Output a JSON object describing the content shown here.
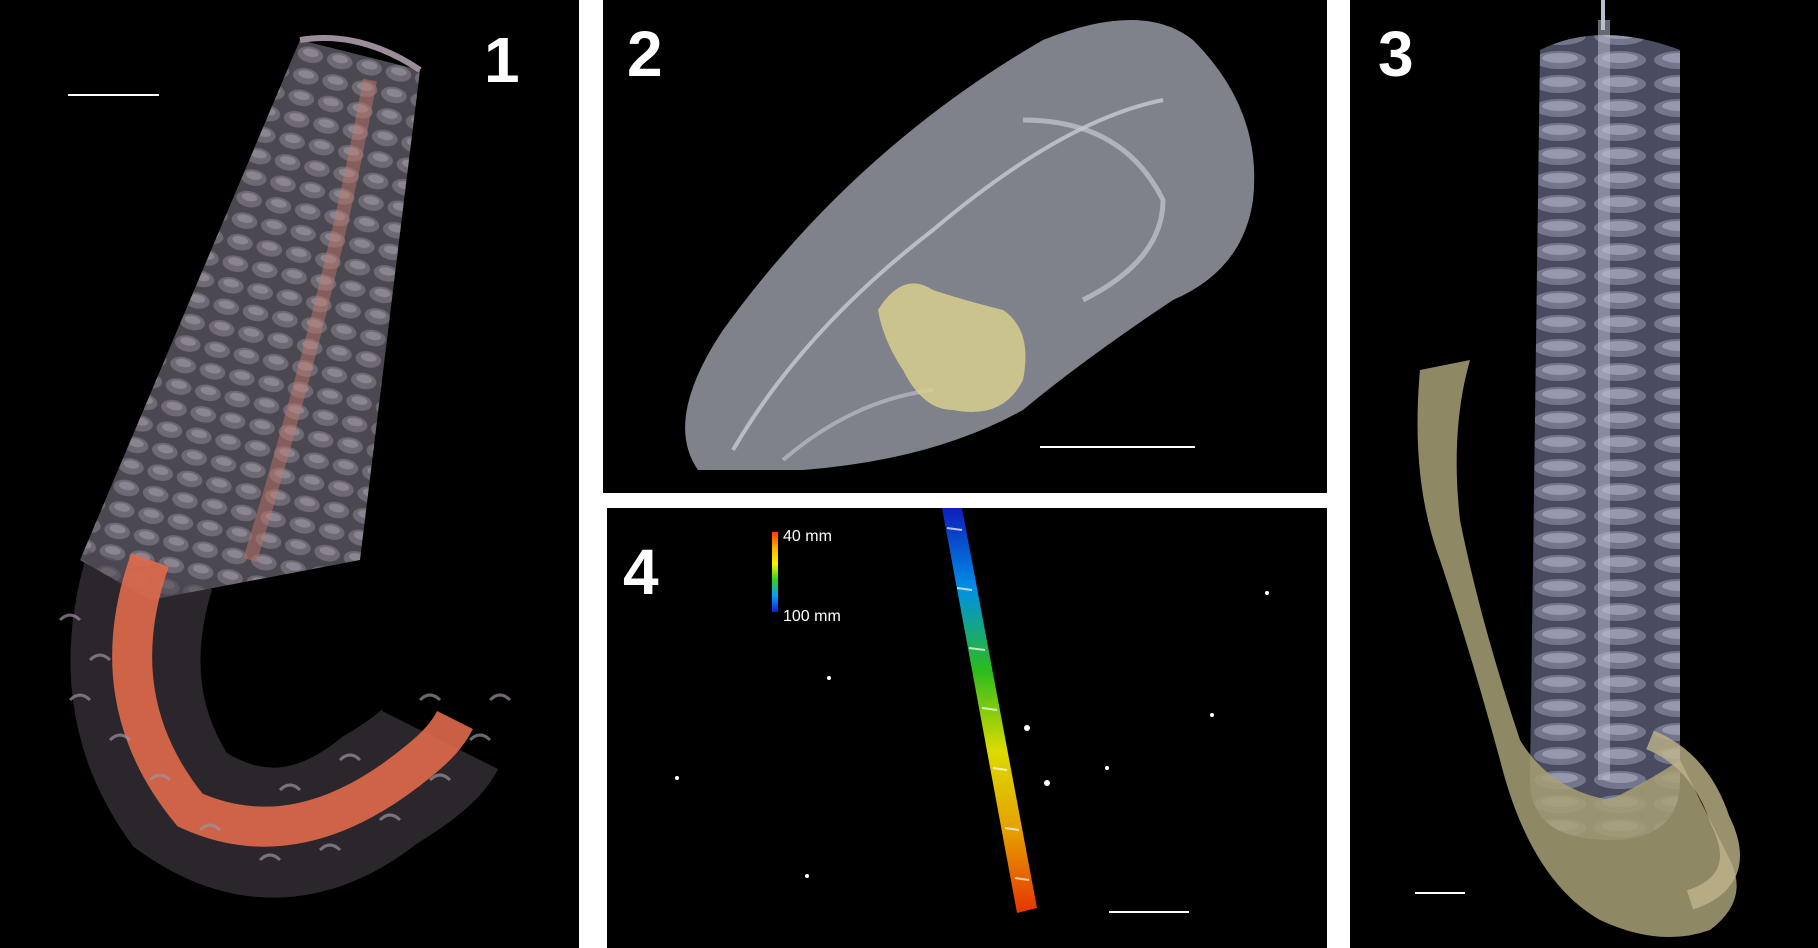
{
  "panels": [
    {
      "label": "1",
      "subject": "segmented-worm-specimen-curled-orange-gut"
    },
    {
      "label": "2",
      "subject": "translucent-head-with-yellow-structure"
    },
    {
      "label": "3",
      "subject": "segmented-worm-specimen-with-olive-tissue"
    },
    {
      "label": "4",
      "subject": "color-depth-coded-segmented-chain"
    }
  ],
  "colorbar": {
    "top_label": "40 mm",
    "bottom_label": "100 mm",
    "colors": [
      "#ff3a00",
      "#ffb000",
      "#f4f400",
      "#30d020",
      "#00a0ff",
      "#1020d0"
    ]
  },
  "colors": {
    "background": "#000000",
    "divider": "#ffffff",
    "worm_body": "#8a8aa6",
    "gut": "#e06a4a",
    "tissue": "#bfb48a",
    "head": "#a9aeb8"
  }
}
